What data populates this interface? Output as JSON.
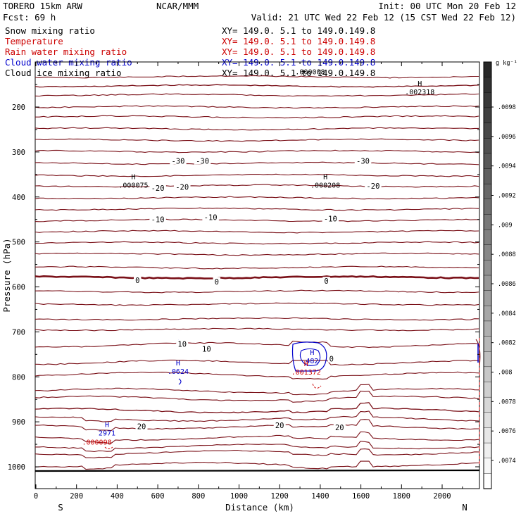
{
  "header": {
    "model": "TORERO  15km ARW",
    "org": "NCAR/MMM",
    "init": "Init: 00 UTC Mon 20 Feb 12",
    "fcst": "Fcst:    69 h",
    "valid": "Valid: 21 UTC Wed 22 Feb 12 (15 CST Wed 22 Feb 12)"
  },
  "fields": [
    {
      "name": "Snow mixing ratio",
      "xy": "",
      "color": "#000000"
    },
    {
      "name": "Temperature",
      "xy": "XY= 149.0.  5.1 to 149.0.149.8",
      "color": "#cc0000"
    },
    {
      "name": "Rain water mixing ratio",
      "xy": "XY= 149.0.  5.1 to 149.0.149.8",
      "color": "#cc0000"
    },
    {
      "name": "Cloud water mixing ratio",
      "xy": "XY= 149.0.  5.1 to 149.0.149.8",
      "color": "#0000cc"
    },
    {
      "name": "Cloud ice mixing ratio",
      "xy": "XY= 149.0.  5.1 to 149.0.149.8",
      "color": "#000000"
    }
  ],
  "top_xy": "XY= 149.0.  5.1 to 149.0.149.8",
  "colors": {
    "temperature": "#7a1018",
    "rain": "#cc0000",
    "cloud_water": "#0000cc",
    "text": "#000000"
  },
  "chart_data": {
    "type": "cross-section",
    "xlabel": "Distance (km)",
    "ylabel": "Pressure (hPa)",
    "xlim": [
      0,
      2180
    ],
    "ylim": [
      1050,
      140
    ],
    "x_ticks": [
      0,
      200,
      400,
      600,
      800,
      1000,
      1200,
      1400,
      1600,
      1800,
      2000
    ],
    "y_ticks": [
      200,
      300,
      400,
      500,
      600,
      700,
      800,
      900,
      1000
    ],
    "end_labels": {
      "left": "S",
      "right": "N"
    },
    "colorbar": {
      "unit": "g kg⁻¹",
      "ticks": [
        ".0098",
        ".0096",
        ".0094",
        ".0092",
        ".009",
        ".0088",
        ".0086",
        ".0084",
        ".0082",
        ".008",
        ".0078",
        ".0076",
        ".0074"
      ],
      "values": [
        0.0098,
        0.0096,
        0.0094,
        0.0092,
        0.009,
        0.0088,
        0.0086,
        0.0084,
        0.0082,
        0.008,
        0.0078,
        0.0076,
        0.0074
      ]
    },
    "temperature_labels": [
      {
        "text": "-30",
        "x": 700,
        "p": 320
      },
      {
        "text": "-30",
        "x": 820,
        "p": 320
      },
      {
        "text": "-30",
        "x": 1610,
        "p": 320
      },
      {
        "text": "-20",
        "x": 600,
        "p": 380
      },
      {
        "text": "-20",
        "x": 720,
        "p": 378
      },
      {
        "text": "-20",
        "x": 1660,
        "p": 375
      },
      {
        "text": "-10",
        "x": 600,
        "p": 450
      },
      {
        "text": "-10",
        "x": 860,
        "p": 445
      },
      {
        "text": "-10",
        "x": 1450,
        "p": 448
      },
      {
        "text": "0",
        "x": 500,
        "p": 585
      },
      {
        "text": "0",
        "x": 890,
        "p": 588
      },
      {
        "text": "0",
        "x": 1430,
        "p": 587
      },
      {
        "text": "10",
        "x": 720,
        "p": 727
      },
      {
        "text": "10",
        "x": 840,
        "p": 738
      },
      {
        "text": "0",
        "x": 1455,
        "p": 760
      },
      {
        "text": "20",
        "x": 520,
        "p": 910
      },
      {
        "text": "20",
        "x": 1200,
        "p": 908
      },
      {
        "text": "20",
        "x": 1495,
        "p": 912
      }
    ],
    "extrema": [
      {
        "symbol": "H",
        "value": ".002318",
        "x": 1890,
        "p": 170,
        "color": "black"
      },
      {
        "symbol": "H",
        "value": ".000075",
        "x": 480,
        "p": 378,
        "color": "black"
      },
      {
        "symbol": "H",
        "value": ".000208",
        "x": 1425,
        "p": 378,
        "color": "black"
      },
      {
        "symbol": "H",
        "value": ".0624",
        "x": 700,
        "p": 792,
        "color": "blue"
      },
      {
        "symbol": "H",
        "value": "482",
        "x": 1360,
        "p": 768,
        "color": "blue"
      },
      {
        "symbol": "H",
        "value": ".001372",
        "x": 1330,
        "p": 793,
        "color": "red"
      },
      {
        "symbol": "H",
        "value": "2971",
        "x": 350,
        "p": 929,
        "color": "blue"
      },
      {
        "symbol": "",
        "value": ".000098",
        "x": 300,
        "p": 949,
        "color": "red"
      },
      {
        "symbol": "",
        "value": ".000008",
        "x": 1350,
        "p": 126,
        "color": "black"
      }
    ]
  }
}
